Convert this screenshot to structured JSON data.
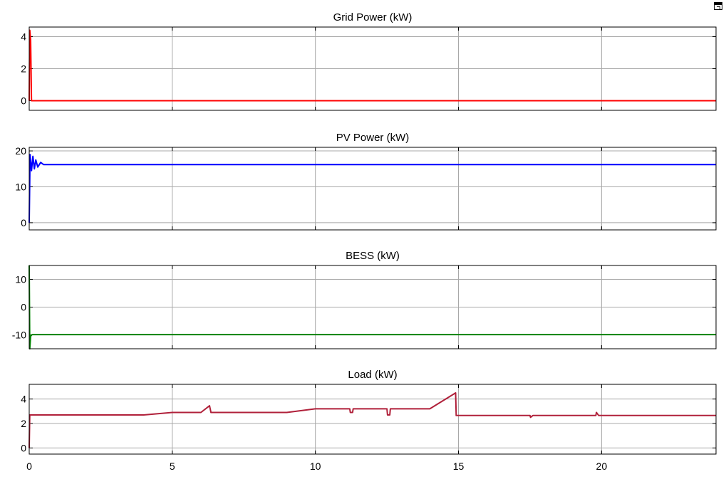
{
  "chart_data": {
    "type": "line",
    "xlim": [
      0,
      24
    ],
    "x_ticks": [
      0,
      5,
      10,
      15,
      20
    ],
    "grid": true,
    "panels": [
      {
        "title": "Grid Power (kW)",
        "ylim": [
          -0.6,
          4.6
        ],
        "y_ticks": [
          0,
          2,
          4
        ],
        "color": "#ff0000",
        "series": [
          {
            "x": [
              0,
              0.02,
              0.05,
              0.08,
              24
            ],
            "y": [
              0,
              4.4,
              3.8,
              0,
              0
            ]
          }
        ]
      },
      {
        "title": "PV Power (kW)",
        "ylim": [
          -2,
          21
        ],
        "y_ticks": [
          0,
          10,
          20
        ],
        "color": "#0000ff",
        "series": [
          {
            "x": [
              0,
              0.03,
              0.08,
              0.13,
              0.18,
              0.23,
              0.3,
              0.4,
              0.5,
              24
            ],
            "y": [
              0,
              19,
              14.5,
              18.5,
              15,
              17.5,
              15.5,
              16.8,
              16.2,
              16.2
            ]
          }
        ]
      },
      {
        "title": "BESS (kW)",
        "ylim": [
          -15,
          15
        ],
        "y_ticks": [
          -10,
          0,
          10
        ],
        "color": "#008000",
        "series": [
          {
            "x": [
              0,
              0.02,
              0.05,
              0.1,
              24
            ],
            "y": [
              15,
              -15,
              -10.5,
              -9.9,
              -9.9
            ]
          }
        ]
      },
      {
        "title": "Load (kW)",
        "ylim": [
          -0.5,
          5.2
        ],
        "y_ticks": [
          0,
          2,
          4
        ],
        "color": "#b0203a",
        "series": [
          {
            "x": [
              0,
              0.02,
              0.05,
              4,
              5,
              6,
              6.3,
              6.35,
              9,
              10,
              11.2,
              11.22,
              11.3,
              11.32,
              12.5,
              12.52,
              12.6,
              12.62,
              14,
              14.9,
              14.92,
              17.5,
              17.52,
              17.6,
              19.8,
              19.82,
              19.9,
              24
            ],
            "y": [
              0,
              2.7,
              2.7,
              2.7,
              2.9,
              2.9,
              3.45,
              2.9,
              2.9,
              3.2,
              3.2,
              2.9,
              2.9,
              3.2,
              3.2,
              2.7,
              2.7,
              3.2,
              3.2,
              4.5,
              2.65,
              2.65,
              2.5,
              2.65,
              2.65,
              2.9,
              2.65,
              2.65
            ]
          }
        ]
      }
    ]
  }
}
